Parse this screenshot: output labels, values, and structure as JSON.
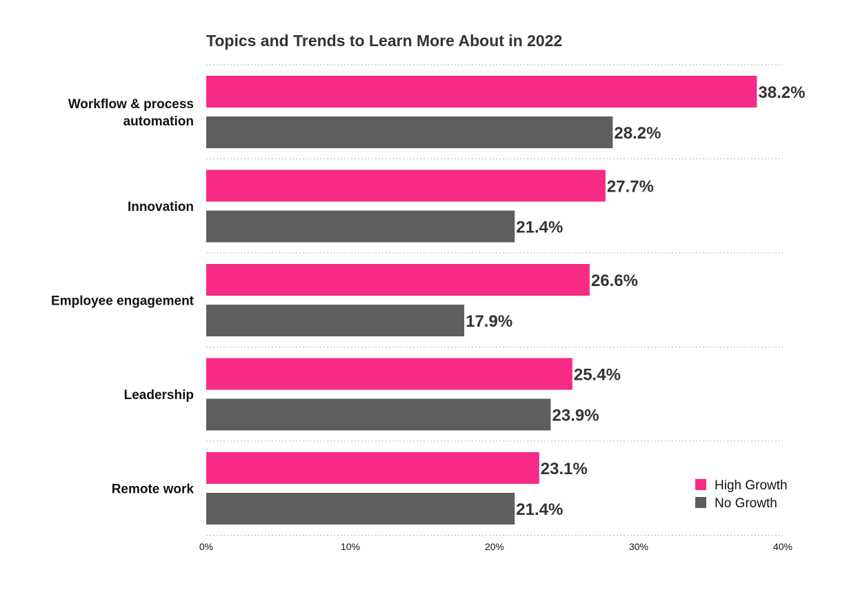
{
  "chart_data": {
    "type": "bar",
    "orientation": "horizontal",
    "title": "Topics and Trends to Learn More About in 2022",
    "categories": [
      [
        "Workflow & process",
        "automation"
      ],
      [
        "Innovation"
      ],
      [
        "Employee engagement"
      ],
      [
        "Leadership"
      ],
      [
        "Remote work"
      ]
    ],
    "series": [
      {
        "name": "High Growth",
        "color": "#f72a85",
        "values": [
          38.2,
          27.7,
          26.6,
          25.4,
          23.1
        ]
      },
      {
        "name": "No Growth",
        "color": "#5e5e5e",
        "values": [
          28.2,
          21.4,
          17.9,
          23.9,
          21.4
        ]
      }
    ],
    "value_format": "percent_1dp",
    "xlim": [
      0,
      40
    ],
    "xticks": [
      "0%",
      "10%",
      "20%",
      "30%",
      "40%"
    ],
    "grid": "horizontal-dotted",
    "legend_position": "bottom-right"
  }
}
